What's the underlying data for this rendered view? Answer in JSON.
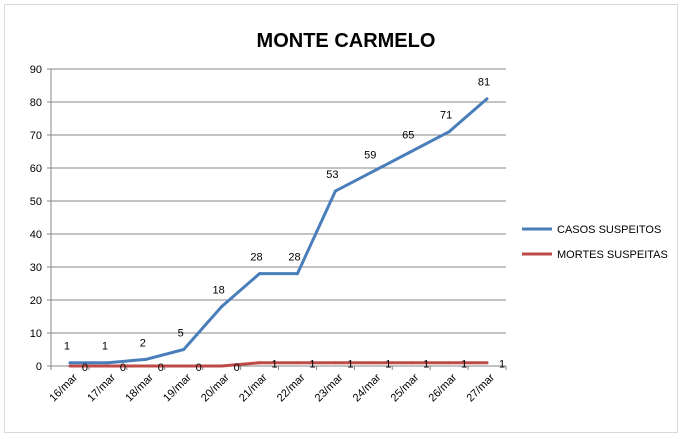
{
  "chart_data": {
    "type": "line",
    "title": "MONTE CARMELO",
    "categories": [
      "16/mar",
      "17/mar",
      "18/mar",
      "19/mar",
      "20/mar",
      "21/mar",
      "22/mar",
      "23/mar",
      "24/mar",
      "25/mar",
      "26/mar",
      "27/mar"
    ],
    "series": [
      {
        "name": "CASOS SUSPEITOS",
        "color": "#4A7EBB",
        "values": [
          1,
          1,
          2,
          5,
          18,
          28,
          28,
          53,
          59,
          65,
          71,
          81
        ]
      },
      {
        "name": "MORTES SUSPEITAS",
        "color": "#BE4B48",
        "values": [
          0,
          0,
          0,
          0,
          0,
          1,
          1,
          1,
          1,
          1,
          1,
          1
        ]
      }
    ],
    "ylim": [
      0,
      90
    ],
    "yticks": [
      0,
      10,
      20,
      30,
      40,
      50,
      60,
      70,
      80,
      90
    ],
    "grid": true,
    "legend": "right"
  }
}
